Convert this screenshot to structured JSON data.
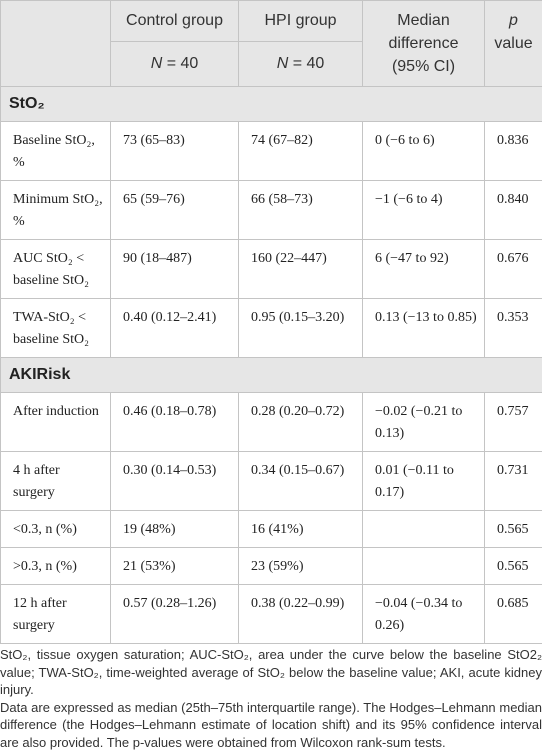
{
  "table": {
    "header": {
      "control": "Control group",
      "hpi": "HPI group",
      "median": "Median difference (95% CI)",
      "p": "p value",
      "control_n": "N = 40",
      "hpi_n": "N = 40"
    },
    "sections": [
      {
        "title": "StO₂",
        "rows": [
          [
            "Baseline StO₂, %",
            "73 (65–83)",
            "74 (67–82)",
            "0 (−6 to 6)",
            "0.836"
          ],
          [
            "Minimum StO₂, %",
            "65 (59–76)",
            "66 (58–73)",
            "−1 (−6 to 4)",
            "0.840"
          ],
          [
            "AUC StO₂ < baseline StO₂",
            "90 (18–487)",
            "160 (22–447)",
            "6 (−47 to 92)",
            "0.676"
          ],
          [
            "TWA-StO₂ < baseline StO₂",
            "0.40 (0.12–2.41)",
            "0.95 (0.15–3.20)",
            "0.13 (−13 to 0.85)",
            "0.353"
          ]
        ]
      },
      {
        "title": "AKIRisk",
        "rows": [
          [
            "After induction",
            "0.46 (0.18–0.78)",
            "0.28 (0.20–0.72)",
            "−0.02 (−0.21 to 0.13)",
            "0.757"
          ],
          [
            "4 h after surgery",
            "0.30 (0.14–0.53)",
            "0.34 (0.15–0.67)",
            "0.01 (−0.11 to 0.17)",
            "0.731"
          ],
          [
            "<0.3, n (%)",
            "19 (48%)",
            "16 (41%)",
            null,
            "0.565"
          ],
          [
            ">0.3, n (%)",
            "21 (53%)",
            "23 (59%)",
            null,
            "0.565"
          ],
          [
            "12 h after surgery",
            "0.57 (0.28–1.26)",
            "0.38 (0.22–0.99)",
            "−0.04 (−0.34 to 0.26)",
            "0.685"
          ]
        ]
      }
    ],
    "footnotes": [
      "StO₂, tissue oxygen saturation; AUC-StO₂, area under the curve below the baseline StO2₂ value; TWA-StO₂, time-weighted average of StO₂ below the baseline value; AKI, acute kidney injury.",
      "Data are expressed as median (25th–75th interquartile range). The Hodges–Lehmann median difference (the Hodges–Lehmann estimate of location shift) and its 95% confidence interval are also provided. The p-values were obtained from Wilcoxon rank-sum tests."
    ]
  }
}
